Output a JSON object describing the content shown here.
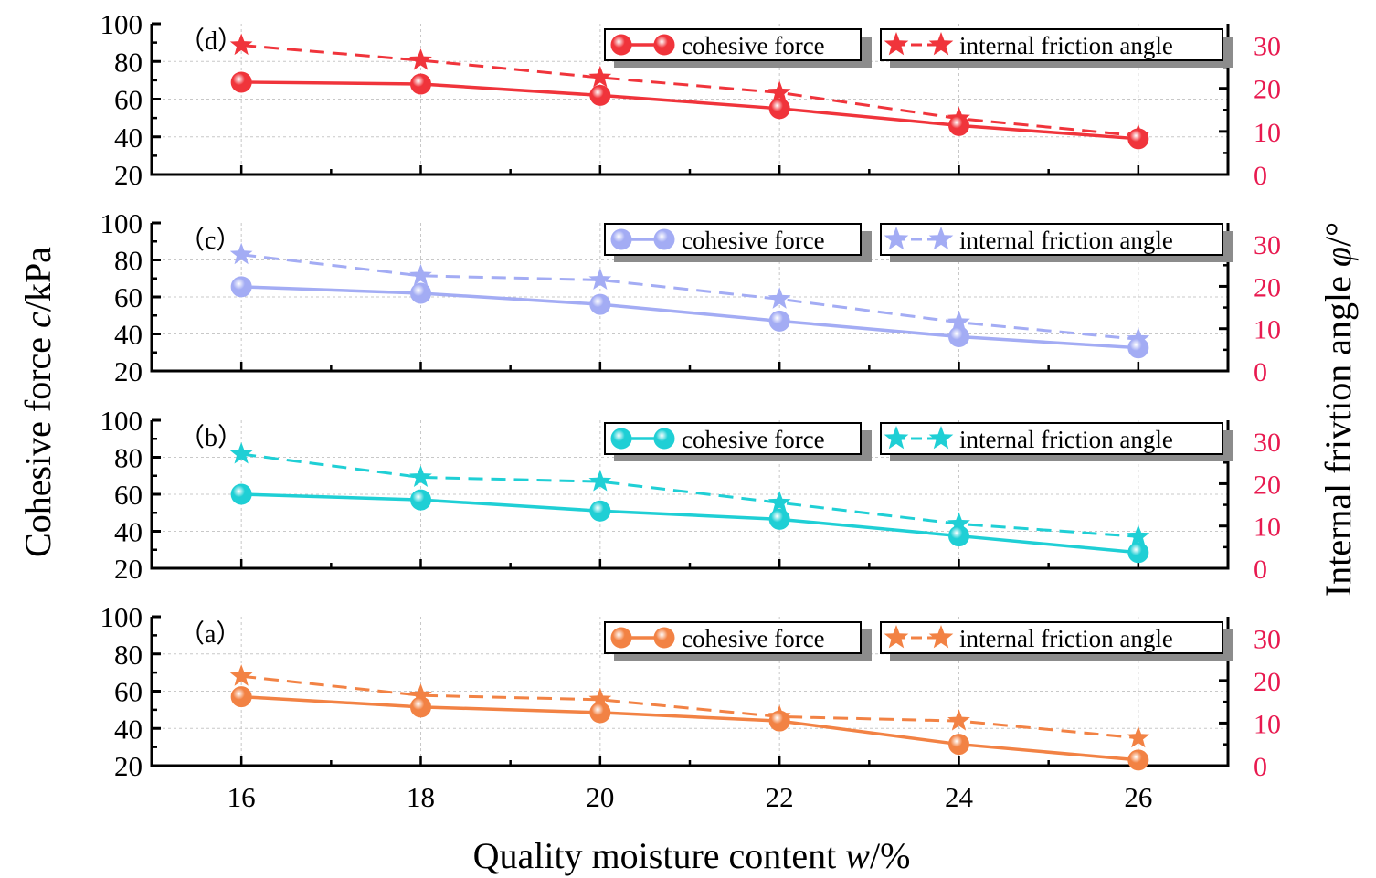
{
  "chart_data": {
    "type": "line",
    "xlabel_prefix": "Quality moisture content ",
    "xlabel_var": "w",
    "xlabel_unit": "/%",
    "ylabel_prefix": "Cohesive force ",
    "ylabel_var": "c",
    "ylabel_unit": "/kPa",
    "y2label_prefix": "Internal frivtion angle ",
    "y2label_var": "φ",
    "y2label_unit": "/°",
    "x_ticks": [
      "16",
      "18",
      "20",
      "22",
      "24",
      "26"
    ],
    "xlim": [
      15,
      27
    ],
    "ylim": [
      20,
      100
    ],
    "y_ticks": [
      "20",
      "40",
      "60",
      "80",
      "100"
    ],
    "y2lim": [
      0,
      35
    ],
    "y2_ticks": [
      "0",
      "10",
      "20",
      "30"
    ],
    "right_axis_color": "#e8194f",
    "grid": true,
    "panels": [
      {
        "label": "（d）",
        "color": "#f0343b",
        "cohesive_label": "cohesive force",
        "angle_label": "internal friction angle",
        "x": [
          16,
          18,
          20,
          22,
          24,
          26
        ],
        "cohesive_force": [
          69,
          68,
          62,
          55,
          46,
          39
        ],
        "friction_angle": [
          30,
          26.5,
          22.5,
          19,
          13,
          9
        ]
      },
      {
        "label": "（c）",
        "color": "#a3acf4",
        "cohesive_label": "cohesive force",
        "angle_label": "internal friction angle",
        "x": [
          16,
          18,
          20,
          22,
          24,
          26
        ],
        "cohesive_force": [
          65.5,
          62,
          56,
          47,
          38.5,
          32.5
        ],
        "friction_angle": [
          27.5,
          22.5,
          21.5,
          17,
          11.5,
          7.5
        ]
      },
      {
        "label": "（b）",
        "color": "#1fcfd5",
        "cohesive_label": "cohesive force",
        "angle_label": "internal friction angle",
        "x": [
          16,
          18,
          20,
          22,
          24,
          26
        ],
        "cohesive_force": [
          60,
          57,
          51,
          46.5,
          37.5,
          28.5
        ],
        "friction_angle": [
          27,
          21.5,
          20.5,
          15.5,
          10.5,
          7.5
        ]
      },
      {
        "label": "（a）",
        "color": "#f28244",
        "cohesive_label": "cohesive force",
        "angle_label": "internal friction angle",
        "x": [
          16,
          18,
          20,
          22,
          24,
          26
        ],
        "cohesive_force": [
          57,
          51.5,
          48.5,
          44,
          31.5,
          23
        ],
        "friction_angle": [
          21,
          16.5,
          15.5,
          11.5,
          10.5,
          6.5
        ]
      }
    ]
  }
}
